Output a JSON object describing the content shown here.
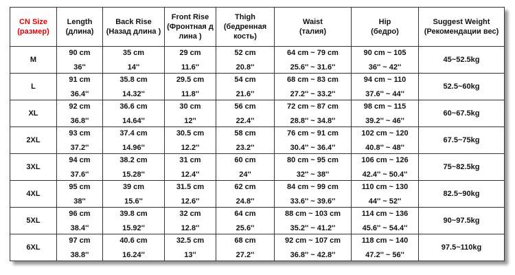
{
  "table": {
    "header": [
      [
        "CN Size",
        "(размер)"
      ],
      [
        "Length",
        "(длина)"
      ],
      [
        "Back Rise",
        "(Назад длина )"
      ],
      [
        "Front Rise",
        "(Фронтная д",
        "лина )"
      ],
      [
        "Thigh",
        "(бедренная кость)"
      ],
      [
        "Waist",
        "(талия)"
      ],
      [
        "Hip",
        "(бедро)"
      ],
      [
        "Suggest Weight",
        "(Рекомендации вес)"
      ]
    ],
    "rows": [
      {
        "size": "M",
        "cells": [
          [
            "90 cm",
            "36''"
          ],
          [
            "35 cm",
            "14''"
          ],
          [
            "29 cm",
            "11.6''"
          ],
          [
            "52 cm",
            "20.8''"
          ],
          [
            "64 cm ~ 79 cm",
            "25.6'' ~ 31.6''"
          ],
          [
            "90 cm ~ 105",
            "36'' ~ 42''"
          ]
        ],
        "weight": "45~52.5kg"
      },
      {
        "size": "L",
        "cells": [
          [
            "91 cm",
            "36.4''"
          ],
          [
            "35.8 cm",
            "14.32''"
          ],
          [
            "29.5 cm",
            "11.8''"
          ],
          [
            "54 cm",
            "21.6''"
          ],
          [
            "68 cm ~ 83 cm",
            "27.2'' ~ 33.2''"
          ],
          [
            "94 cm ~ 110",
            "37.6'' ~ 44''"
          ]
        ],
        "weight": "52.5~60kg"
      },
      {
        "size": "XL",
        "cells": [
          [
            "92 cm",
            "36.8''"
          ],
          [
            "36.6 cm",
            "14.64''"
          ],
          [
            "30 cm",
            "12''"
          ],
          [
            "56 cm",
            "22.4''"
          ],
          [
            "72 cm ~ 87 cm",
            "28.8'' ~ 34.8''"
          ],
          [
            "98 cm ~ 115",
            "39.2'' ~ 46''"
          ]
        ],
        "weight": "60~67.5kg"
      },
      {
        "size": "2XL",
        "cells": [
          [
            "93 cm",
            "37.2''"
          ],
          [
            "37.4 cm",
            "14.96''"
          ],
          [
            "30.5 cm",
            "12.2''"
          ],
          [
            "58 cm",
            "23.2''"
          ],
          [
            "76 cm ~ 91 cm",
            "30.4'' ~ 36.4''"
          ],
          [
            "102 cm ~ 120",
            "40.8'' ~ 48''"
          ]
        ],
        "weight": "67.5~75kg"
      },
      {
        "size": "3XL",
        "cells": [
          [
            "94 cm",
            "37.6''"
          ],
          [
            "38.2 cm",
            "15.28''"
          ],
          [
            "31 cm",
            "12.4''"
          ],
          [
            "60 cm",
            "24''"
          ],
          [
            "80 cm ~ 95 cm",
            "32'' ~ 38''"
          ],
          [
            "106 cm ~ 126",
            "42.4'' ~ 50.4''"
          ]
        ],
        "weight": "75~82.5kg"
      },
      {
        "size": "4XL",
        "cells": [
          [
            "95 cm",
            "38''"
          ],
          [
            "39 cm",
            "15.6''"
          ],
          [
            "31.5 cm",
            "12.6''"
          ],
          [
            "62 cm",
            "24.8''"
          ],
          [
            "84 cm ~ 99 cm",
            "33.6'' ~ 39.6''"
          ],
          [
            "110 cm ~ 130",
            "44'' ~ 52''"
          ]
        ],
        "weight": "82.5~90kg"
      },
      {
        "size": "5XL",
        "cells": [
          [
            "96 cm",
            "38.4''"
          ],
          [
            "39.8 cm",
            "15.92''"
          ],
          [
            "32 cm",
            "12.8''"
          ],
          [
            "64 cm",
            "25.6''"
          ],
          [
            "88 cm ~ 103 cm",
            "35.2'' ~ 41.2''"
          ],
          [
            "114 cm ~ 136",
            "45.6'' ~ 54.4''"
          ]
        ],
        "weight": "90~97.5kg"
      },
      {
        "size": "6XL",
        "cells": [
          [
            "97 cm",
            "38.8''"
          ],
          [
            "40.6 cm",
            "16.24''"
          ],
          [
            "32.5 cm",
            "13''"
          ],
          [
            "68 cm",
            "27.2''"
          ],
          [
            "92 cm ~ 107 cm",
            "36.8'' ~ 42.8''"
          ],
          [
            "118 cm ~ 140",
            "47.2'' ~ 56''"
          ]
        ],
        "weight": "97.5~110kg"
      }
    ]
  }
}
